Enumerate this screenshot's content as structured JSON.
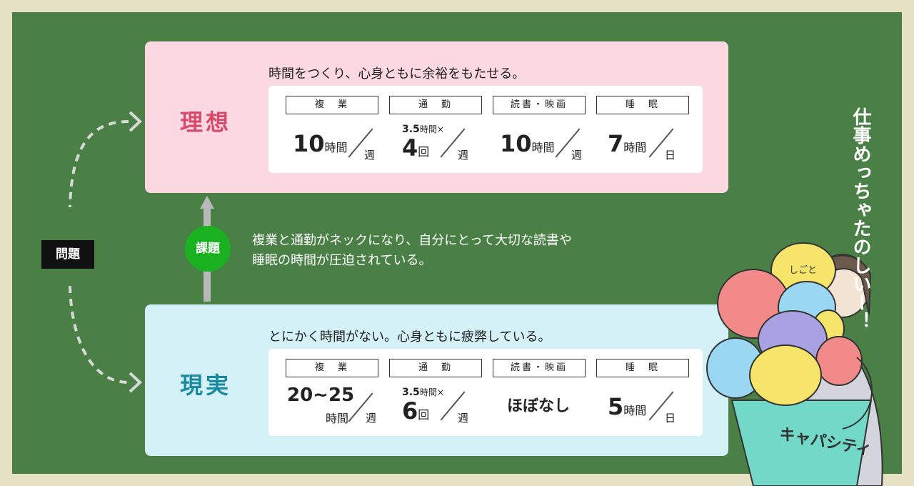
{
  "problem_label": "問題",
  "issue": {
    "badge": "課題",
    "line1": "複業と通勤がネックになり、自分にとって大切な読書や",
    "line2": "睡眠の時間が圧迫されている。"
  },
  "ideal": {
    "title": "理想",
    "description": "時間をつくり、心身ともに余裕をもたせる。",
    "fukugyo": {
      "header": "複　業",
      "value": "10",
      "unit": "時間",
      "per": "週"
    },
    "tsukin": {
      "header": "通　勤",
      "note_num": "3.5",
      "note_unit": "時間×",
      "value": "4",
      "unit": "回",
      "per": "週"
    },
    "dokusho": {
      "header": "読書・映画",
      "value": "10",
      "unit": "時間",
      "per": "週"
    },
    "suimin": {
      "header": "睡　眠",
      "value": "7",
      "unit": "時間",
      "per": "日"
    }
  },
  "real": {
    "title": "現実",
    "description": "とにかく時間がない。心身ともに疲弊している。",
    "fukugyo": {
      "header": "複　業",
      "value": "20~25",
      "unit": "時間",
      "per": "週"
    },
    "tsukin": {
      "header": "通　勤",
      "note_num": "3.5",
      "note_unit": "時間×",
      "value": "6",
      "unit": "回",
      "per": "週"
    },
    "dokusho": {
      "header": "読書・映画",
      "value": "ほぼなし"
    },
    "suimin": {
      "header": "睡　眠",
      "value": "5",
      "unit": "時間",
      "per": "日"
    }
  },
  "illustration": {
    "shout": "仕事めっちゃたのしいー！",
    "blob_label": "しごと",
    "basket_label": "キャパシティ"
  }
}
